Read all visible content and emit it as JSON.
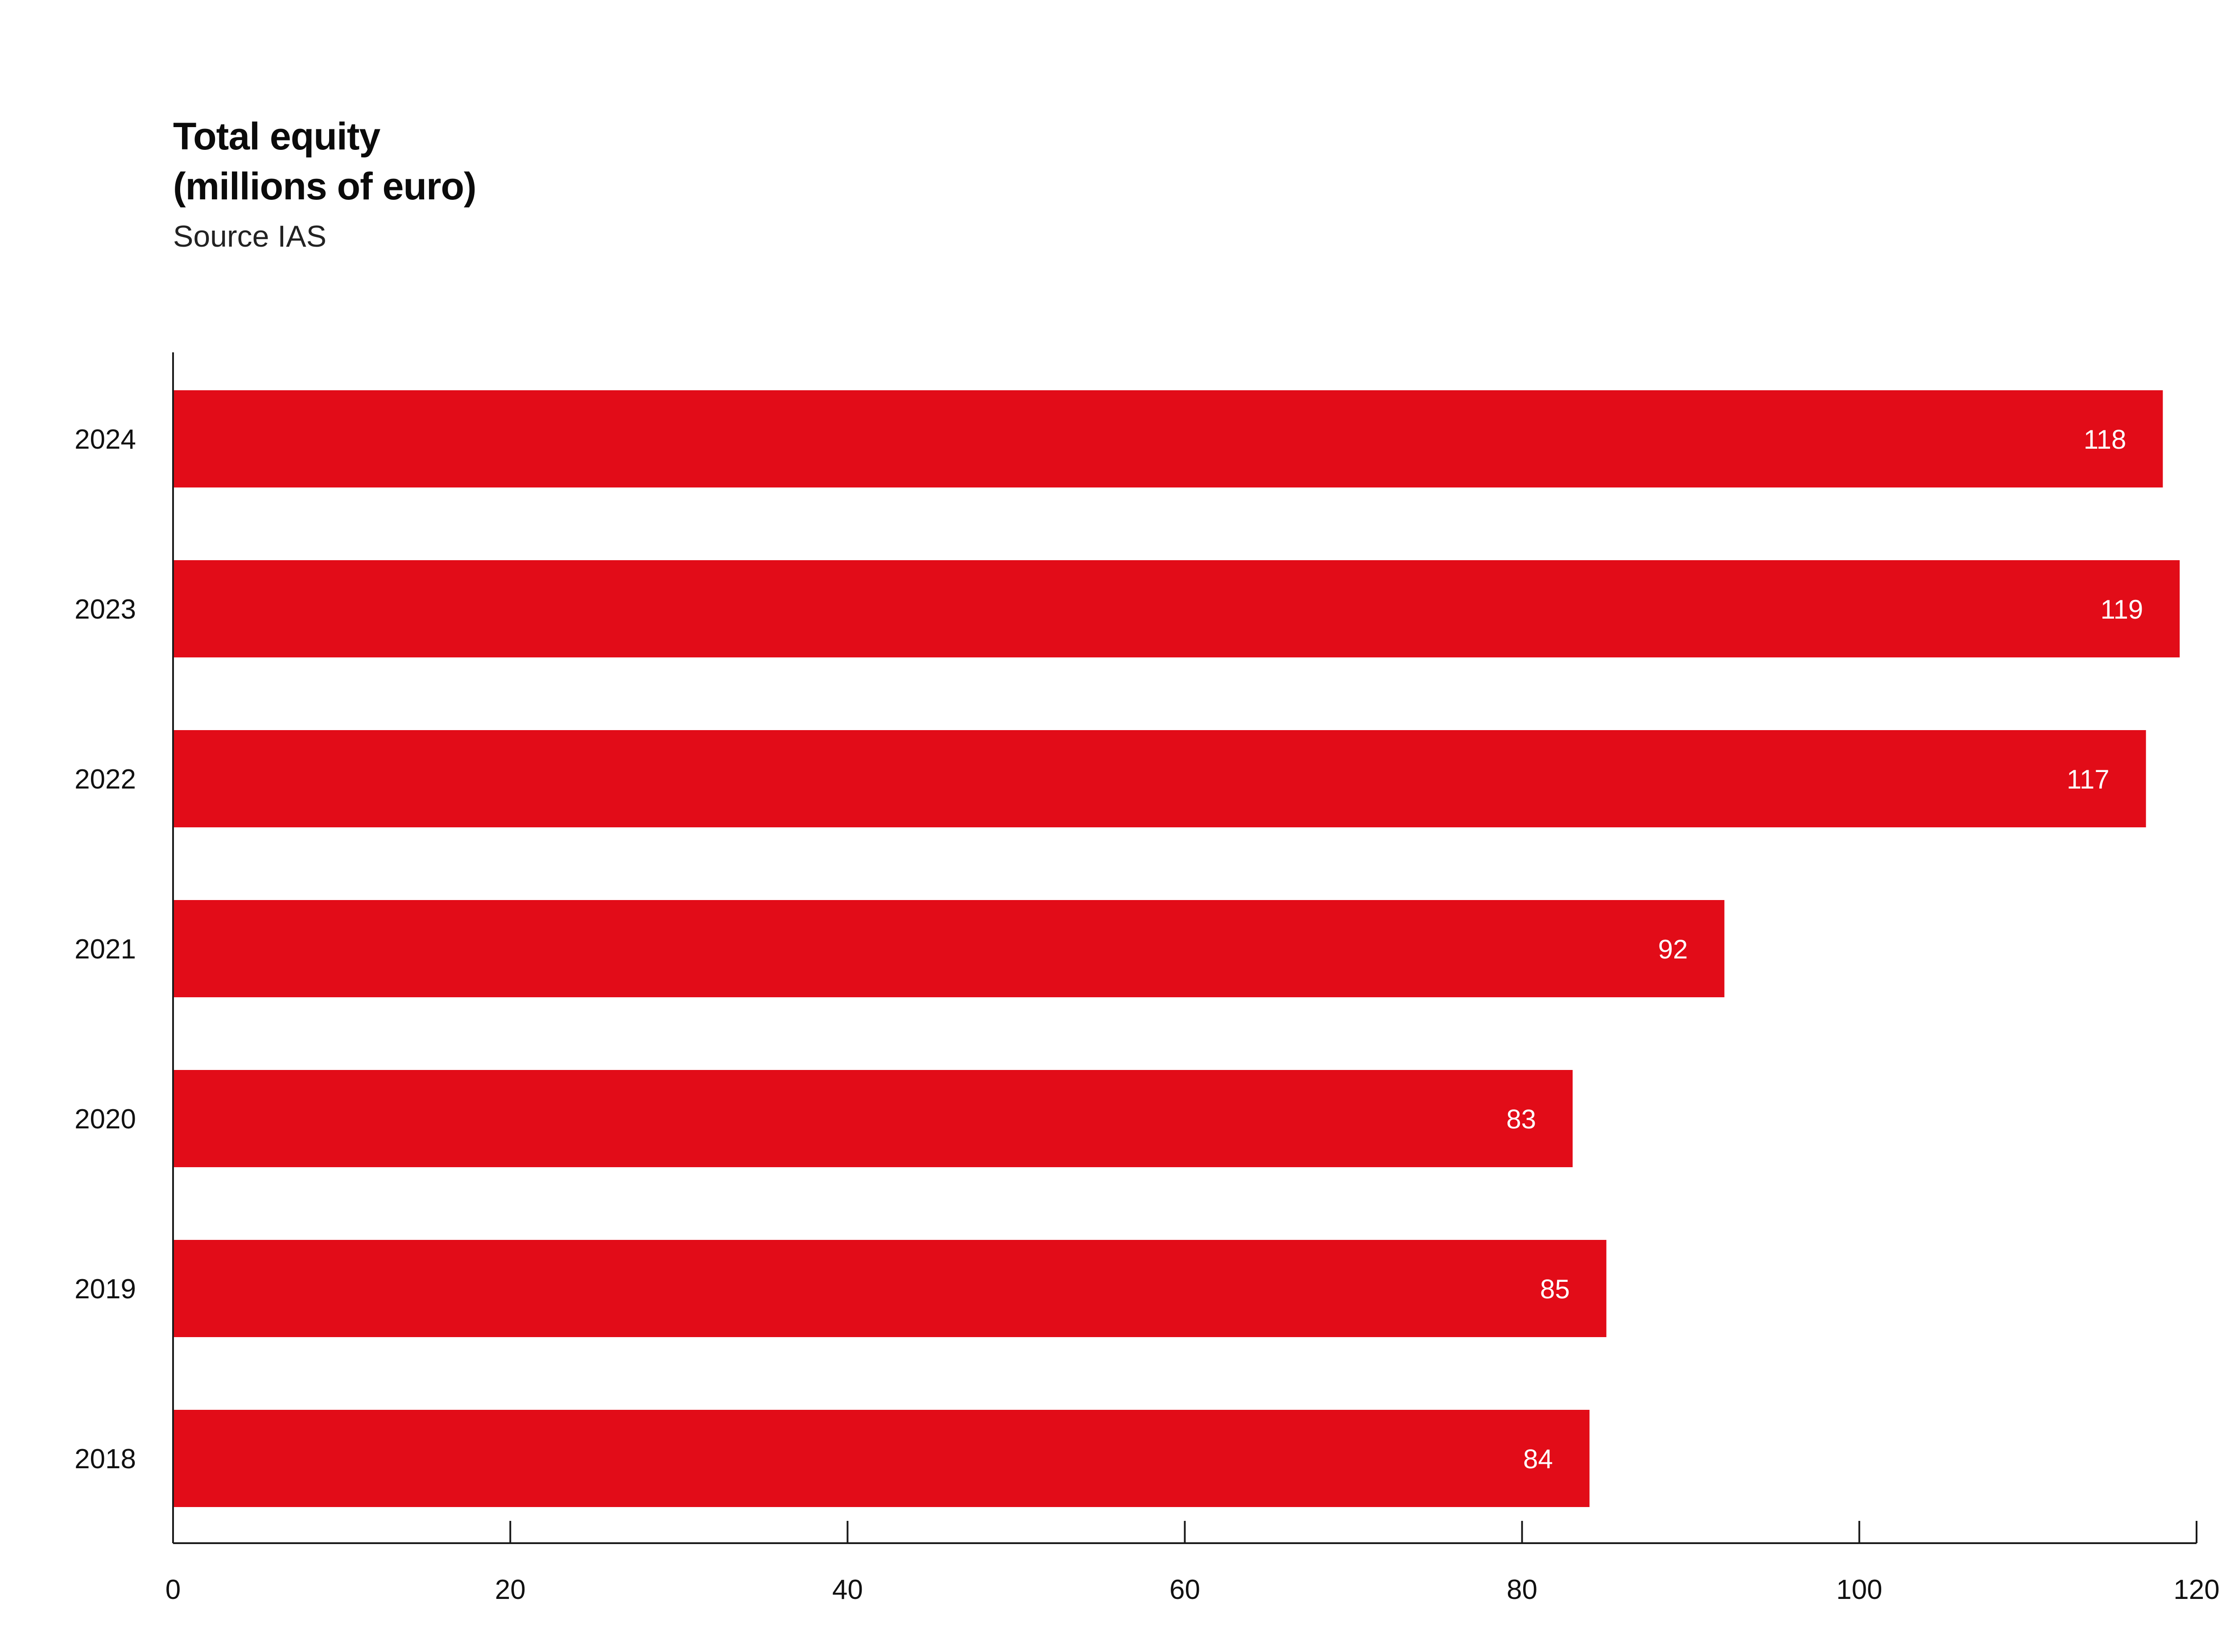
{
  "chart_data": {
    "type": "bar",
    "orientation": "horizontal",
    "title": "Total equity",
    "title_line2": "(millions of euro)",
    "subtitle": "Source IAS",
    "categories": [
      "2024",
      "2023",
      "2022",
      "2021",
      "2020",
      "2019",
      "2018"
    ],
    "values": [
      118,
      119,
      117,
      92,
      83,
      85,
      84
    ],
    "data_labels": [
      "118",
      "119",
      "117",
      "92",
      "83",
      "85",
      "84"
    ],
    "xlim": [
      0,
      120
    ],
    "x_ticks": [
      0,
      20,
      40,
      60,
      80,
      100,
      120
    ],
    "x_tick_labels": [
      "0",
      "20",
      "40",
      "60",
      "80",
      "100",
      "120"
    ],
    "grid": false,
    "legend": "none",
    "bar_color": "#e20c18",
    "label_color": "#ffffff"
  }
}
